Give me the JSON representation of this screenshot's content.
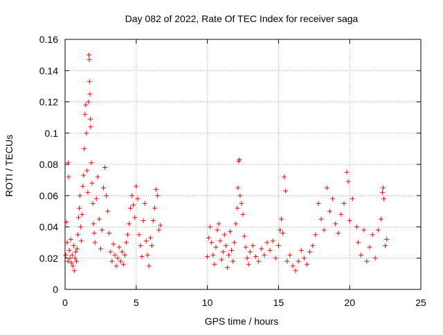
{
  "chart_data": {
    "type": "scatter",
    "title": "Day 082 of 2022, Rate Of TEC Index for receiver saga",
    "xlabel": "GPS time / hours",
    "ylabel": "ROTI / TECUs",
    "xlim": [
      0,
      25
    ],
    "ylim": [
      0,
      0.16
    ],
    "x_ticks": [
      0,
      5,
      10,
      15,
      20,
      25
    ],
    "y_ticks": [
      0,
      0.02,
      0.04,
      0.06,
      0.08,
      0.1,
      0.12,
      0.14,
      0.16
    ],
    "grid": true,
    "marker": "+",
    "color": "#ff0000",
    "series": [
      {
        "points": [
          [
            0.05,
            0.022
          ],
          [
            0.1,
            0.043
          ],
          [
            0.15,
            0.03
          ],
          [
            0.2,
            0.018
          ],
          [
            0.22,
            0.081
          ],
          [
            0.25,
            0.072
          ],
          [
            0.3,
            0.025
          ],
          [
            0.35,
            0.02
          ],
          [
            0.4,
            0.032
          ],
          [
            0.45,
            0.017
          ],
          [
            0.5,
            0.022
          ],
          [
            0.55,
            0.015
          ],
          [
            0.6,
            0.028
          ],
          [
            0.65,
            0.012
          ],
          [
            0.7,
            0.02
          ],
          [
            0.75,
            0.024
          ],
          [
            0.8,
            0.018
          ],
          [
            0.85,
            0.026
          ],
          [
            0.9,
            0.035
          ],
          [
            0.95,
            0.046
          ],
          [
            1.0,
            0.052
          ],
          [
            1.05,
            0.06
          ],
          [
            1.1,
            0.04
          ],
          [
            1.15,
            0.031
          ],
          [
            1.2,
            0.048
          ],
          [
            1.25,
            0.066
          ],
          [
            1.3,
            0.073
          ],
          [
            1.35,
            0.09
          ],
          [
            1.4,
            0.112
          ],
          [
            1.45,
            0.118
          ],
          [
            1.5,
            0.1
          ],
          [
            1.55,
            0.076
          ],
          [
            1.6,
            0.062
          ],
          [
            1.65,
            0.12
          ],
          [
            1.68,
            0.15
          ],
          [
            1.7,
            0.147
          ],
          [
            1.72,
            0.133
          ],
          [
            1.75,
            0.125
          ],
          [
            1.78,
            0.109
          ],
          [
            1.8,
            0.104
          ],
          [
            1.85,
            0.081
          ],
          [
            1.9,
            0.068
          ],
          [
            1.95,
            0.055
          ],
          [
            2.0,
            0.042
          ],
          [
            2.05,
            0.036
          ],
          [
            2.1,
            0.03
          ],
          [
            2.2,
            0.058
          ],
          [
            2.3,
            0.072
          ],
          [
            2.4,
            0.045
          ],
          [
            2.5,
            0.026
          ],
          [
            2.6,
            0.038
          ],
          [
            2.7,
            0.065
          ],
          [
            2.8,
            0.078
          ],
          [
            2.9,
            0.06
          ],
          [
            3.0,
            0.05
          ],
          [
            3.1,
            0.036
          ],
          [
            3.2,
            0.024
          ],
          [
            3.3,
            0.018
          ],
          [
            3.4,
            0.029
          ],
          [
            3.5,
            0.022
          ],
          [
            3.6,
            0.015
          ],
          [
            3.7,
            0.02
          ],
          [
            3.8,
            0.027
          ],
          [
            3.9,
            0.018
          ],
          [
            4.0,
            0.024
          ],
          [
            4.1,
            0.016
          ],
          [
            4.2,
            0.022
          ],
          [
            4.3,
            0.03
          ],
          [
            4.4,
            0.035
          ],
          [
            4.5,
            0.042
          ],
          [
            4.6,
            0.052
          ],
          [
            4.7,
            0.06
          ],
          [
            4.8,
            0.054
          ],
          [
            4.9,
            0.046
          ],
          [
            5.0,
            0.066
          ],
          [
            5.1,
            0.058
          ],
          [
            5.2,
            0.035
          ],
          [
            5.3,
            0.028
          ],
          [
            5.4,
            0.021
          ],
          [
            5.5,
            0.044
          ],
          [
            5.6,
            0.055
          ],
          [
            5.7,
            0.031
          ],
          [
            5.8,
            0.022
          ],
          [
            5.9,
            0.015
          ],
          [
            6.0,
            0.033
          ],
          [
            6.1,
            0.028
          ],
          [
            6.2,
            0.044
          ],
          [
            6.3,
            0.052
          ],
          [
            6.4,
            0.064
          ],
          [
            6.5,
            0.06
          ],
          [
            6.6,
            0.038
          ],
          [
            6.7,
            0.041
          ],
          [
            10.0,
            0.021
          ],
          [
            10.1,
            0.033
          ],
          [
            10.2,
            0.04
          ],
          [
            10.3,
            0.03
          ],
          [
            10.4,
            0.022
          ],
          [
            10.5,
            0.016
          ],
          [
            10.6,
            0.027
          ],
          [
            10.7,
            0.038
          ],
          [
            10.8,
            0.042
          ],
          [
            10.9,
            0.031
          ],
          [
            11.0,
            0.019
          ],
          [
            11.1,
            0.024
          ],
          [
            11.2,
            0.035
          ],
          [
            11.3,
            0.028
          ],
          [
            11.4,
            0.014
          ],
          [
            11.5,
            0.022
          ],
          [
            11.6,
            0.037
          ],
          [
            11.7,
            0.025
          ],
          [
            11.8,
            0.018
          ],
          [
            11.9,
            0.03
          ],
          [
            12.0,
            0.042
          ],
          [
            12.1,
            0.052
          ],
          [
            12.15,
            0.065
          ],
          [
            12.2,
            0.082
          ],
          [
            12.25,
            0.083
          ],
          [
            12.3,
            0.06
          ],
          [
            12.4,
            0.055
          ],
          [
            12.5,
            0.048
          ],
          [
            12.6,
            0.034
          ],
          [
            12.7,
            0.027
          ],
          [
            12.8,
            0.02
          ],
          [
            12.9,
            0.016
          ],
          [
            13.0,
            0.024
          ],
          [
            13.2,
            0.028
          ],
          [
            13.4,
            0.021
          ],
          [
            13.6,
            0.018
          ],
          [
            13.8,
            0.026
          ],
          [
            14.0,
            0.022
          ],
          [
            14.2,
            0.03
          ],
          [
            14.4,
            0.025
          ],
          [
            14.6,
            0.031
          ],
          [
            14.8,
            0.02
          ],
          [
            15.0,
            0.028
          ],
          [
            15.1,
            0.038
          ],
          [
            15.2,
            0.045
          ],
          [
            15.3,
            0.036
          ],
          [
            15.4,
            0.072
          ],
          [
            15.5,
            0.063
          ],
          [
            15.6,
            0.018
          ],
          [
            15.8,
            0.022
          ],
          [
            16.0,
            0.015
          ],
          [
            16.2,
            0.012
          ],
          [
            16.4,
            0.018
          ],
          [
            16.6,
            0.025
          ],
          [
            16.8,
            0.02
          ],
          [
            17.0,
            0.016
          ],
          [
            17.2,
            0.024
          ],
          [
            17.4,
            0.028
          ],
          [
            17.6,
            0.035
          ],
          [
            17.8,
            0.055
          ],
          [
            18.0,
            0.045
          ],
          [
            18.2,
            0.038
          ],
          [
            18.4,
            0.065
          ],
          [
            18.6,
            0.05
          ],
          [
            18.8,
            0.058
          ],
          [
            19.0,
            0.042
          ],
          [
            19.2,
            0.036
          ],
          [
            19.4,
            0.048
          ],
          [
            19.6,
            0.055
          ],
          [
            19.8,
            0.075
          ],
          [
            19.9,
            0.069
          ],
          [
            20.0,
            0.044
          ],
          [
            20.2,
            0.058
          ],
          [
            20.5,
            0.04
          ],
          [
            20.6,
            0.03
          ],
          [
            20.8,
            0.022
          ],
          [
            21.0,
            0.038
          ],
          [
            21.2,
            0.018
          ],
          [
            21.4,
            0.027
          ],
          [
            21.6,
            0.035
          ],
          [
            21.8,
            0.02
          ],
          [
            22.0,
            0.038
          ],
          [
            22.2,
            0.045
          ],
          [
            22.3,
            0.062
          ],
          [
            22.35,
            0.065
          ],
          [
            22.4,
            0.058
          ],
          [
            22.5,
            0.028
          ],
          [
            22.6,
            0.032
          ]
        ]
      }
    ]
  }
}
